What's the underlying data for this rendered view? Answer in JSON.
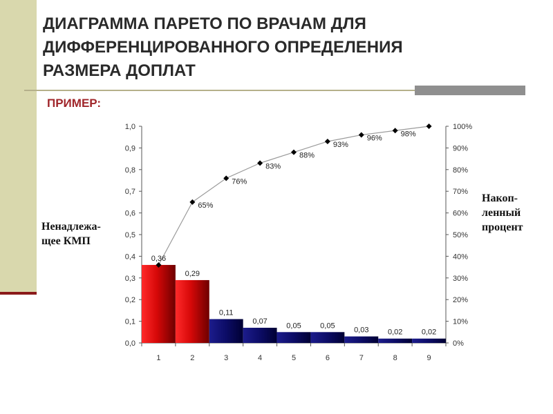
{
  "slide": {
    "title_lines": [
      "ДИАГРАММА ПАРЕТО ПО ВРАЧАМ ДЛЯ",
      "ДИФФЕРЕНЦИРОВАННОГО ОПРЕДЕЛЕНИЯ",
      "РАЗМЕРА ДОПЛАТ"
    ],
    "example_label": "ПРИМЕР:",
    "left_axis_label": "Ненадлежа-\nщее  КМП",
    "right_axis_label": "Накоп-\nленный\nпроцент"
  },
  "colors": {
    "red_bar": "#e60d0d",
    "blue_bar": "#10106e",
    "line": "#9a9a9a",
    "marker": "#000000",
    "accent_title": "#a0252a"
  },
  "chart_data": {
    "type": "bar",
    "categories": [
      "1",
      "2",
      "3",
      "4",
      "5",
      "6",
      "7",
      "8",
      "9"
    ],
    "series": [
      {
        "values": [
          0.36,
          0.29,
          0.11,
          0.07,
          0.05,
          0.05,
          0.03,
          0.02,
          0.02
        ],
        "value_labels": [
          "0,36",
          "0,29",
          "0,11",
          "0,07",
          "0,05",
          "0,05",
          "0,03",
          "0,02",
          "0,02"
        ],
        "bar_colors": [
          "red",
          "red",
          "blue",
          "blue",
          "blue",
          "blue",
          "blue",
          "blue",
          "blue"
        ]
      },
      {
        "type": "line",
        "axis": "right",
        "values": [
          36,
          65,
          76,
          83,
          88,
          93,
          96,
          98,
          100
        ],
        "value_labels": [
          "",
          "65%",
          "76%",
          "83%",
          "88%",
          "93%",
          "96%",
          "98%",
          ""
        ]
      }
    ],
    "y_left": {
      "ylim": [
        0,
        1.0
      ],
      "ticks": [
        "0,0",
        "0,1",
        "0,2",
        "0,3",
        "0,4",
        "0,5",
        "0,6",
        "0,7",
        "0,8",
        "0,9",
        "1,0"
      ]
    },
    "y_right": {
      "ylim": [
        0,
        100
      ],
      "ticks": [
        "0%",
        "10%",
        "20%",
        "30%",
        "40%",
        "50%",
        "60%",
        "70%",
        "80%",
        "90%",
        "100%"
      ]
    },
    "grid": false
  }
}
